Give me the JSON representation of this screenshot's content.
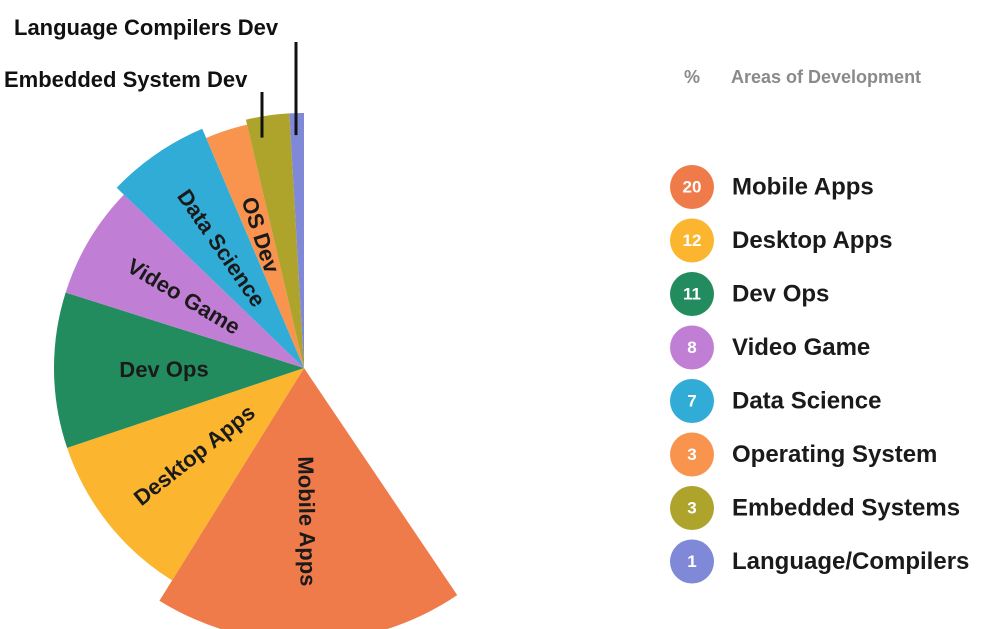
{
  "chart_data": {
    "type": "pie",
    "style": "rose-half",
    "legend_header": {
      "unit": "%",
      "title": "Areas of Development"
    },
    "legend_placement": "right",
    "slices": [
      {
        "value": 20,
        "legend": "Mobile Apps",
        "slice_label": "Mobile Apps",
        "color": "#ef7b4a"
      },
      {
        "value": 12,
        "legend": "Desktop Apps",
        "slice_label": "Desktop Apps",
        "color": "#fbb52e"
      },
      {
        "value": 11,
        "legend": "Dev Ops",
        "slice_label": "Dev Ops",
        "color": "#238c5e"
      },
      {
        "value": 8,
        "legend": "Video Game",
        "slice_label": "Video Game",
        "color": "#c07fd5"
      },
      {
        "value": 7,
        "legend": "Data Science",
        "slice_label": "Data Science",
        "color": "#31acd6"
      },
      {
        "value": 3,
        "legend": "Operating System",
        "slice_label": "OS Dev",
        "color": "#f9944f"
      },
      {
        "value": 3,
        "legend": "Embedded Systems",
        "callout_label": "Embedded System Dev",
        "color": "#aea32b"
      },
      {
        "value": 1,
        "legend": "Language/Compilers",
        "callout_label": "Language Compilers Dev",
        "color": "#8088d8"
      }
    ]
  }
}
